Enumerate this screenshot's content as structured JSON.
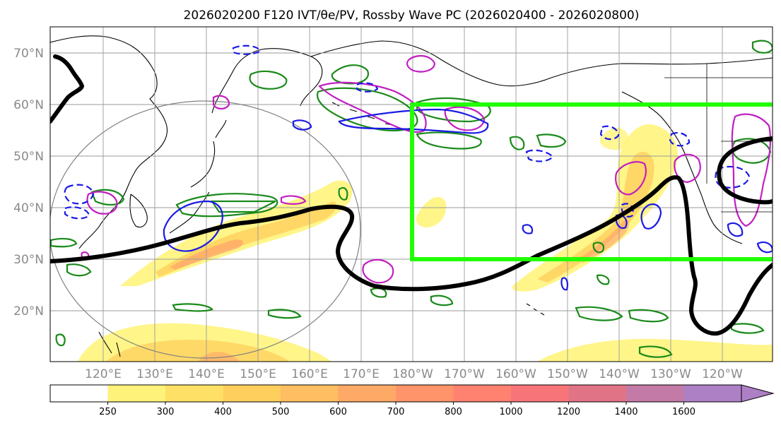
{
  "title": "2026020200 F120 IVT/θe/PV, Rossby Wave PC (2026020400 - 2026020800)",
  "lat_labels": [
    "70°N",
    "60°N",
    "50°N",
    "40°N",
    "30°N",
    "20°N"
  ],
  "lon_labels": [
    "120°E",
    "130°E",
    "140°E",
    "150°E",
    "160°E",
    "170°E",
    "180°W",
    "170°W",
    "160°W",
    "150°W",
    "140°W",
    "130°W",
    "120°W"
  ],
  "colorbar": {
    "ticks": [
      "250",
      "300",
      "400",
      "500",
      "600",
      "700",
      "800",
      "1000",
      "1200",
      "1400",
      "1600"
    ],
    "colors": [
      "#ffffff",
      "#fff27a",
      "#ffe066",
      "#ffcf5e",
      "#ffbe62",
      "#ffa966",
      "#ff946a",
      "#ff8270",
      "#f77478",
      "#e07486",
      "#c47aa6",
      "#ad80c6"
    ]
  },
  "colors": {
    "ivt_fill": "#ffd95e",
    "theta_e": "#1a8a1a",
    "pv_positive": "#c21fc2",
    "pv_negative": "#1a1ae6",
    "wave_contour": "#000000",
    "pc_box": "#22ff00",
    "coast": "#000000",
    "grid": "#9a9a9a"
  }
}
